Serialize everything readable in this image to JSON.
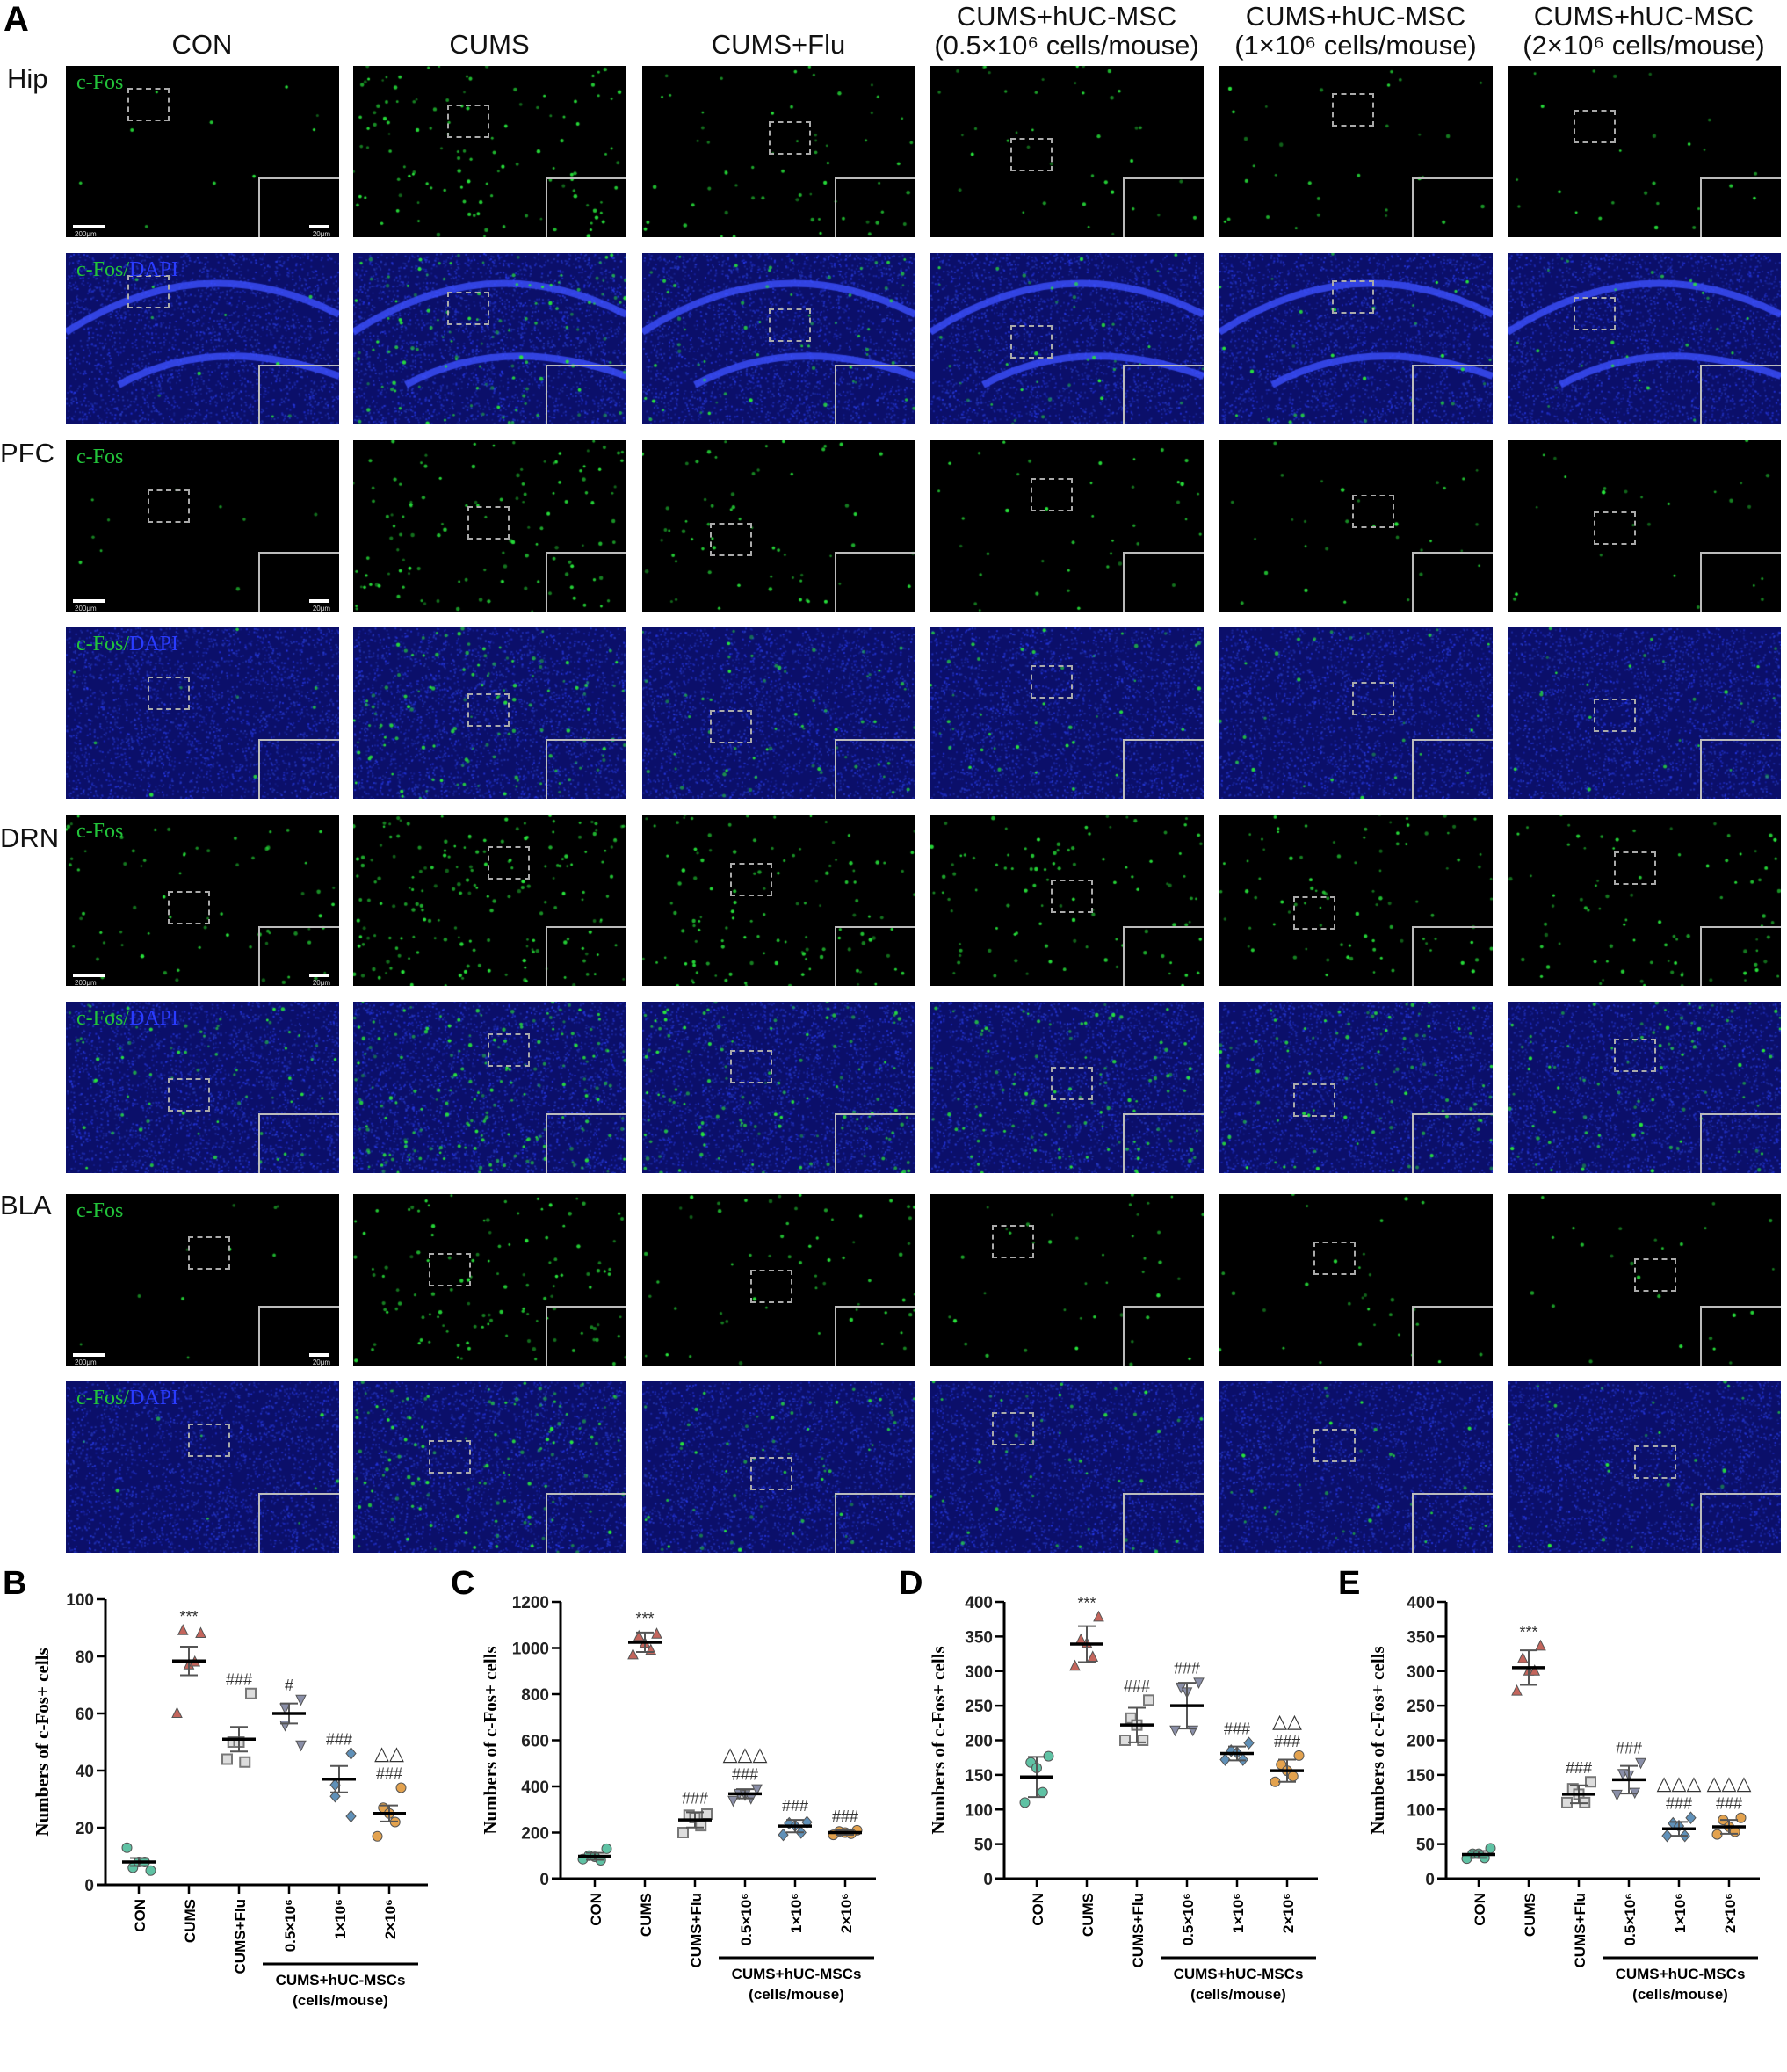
{
  "figure_a": {
    "label": "A",
    "columns": [
      {
        "line1": "CON",
        "line2": ""
      },
      {
        "line1": "CUMS",
        "line2": ""
      },
      {
        "line1": "CUMS+Flu",
        "line2": ""
      },
      {
        "line1": "CUMS+hUC-MSC",
        "line2": "(0.5×10⁶ cells/mouse)"
      },
      {
        "line1": "CUMS+hUC-MSC",
        "line2": "(1×10⁶ cells/mouse)"
      },
      {
        "line1": "CUMS+hUC-MSC",
        "line2": "(2×10⁶ cells/mouse)"
      }
    ],
    "regions": [
      "Hip",
      "PFC",
      "DRN",
      "BLA"
    ],
    "stain_labels": {
      "green": "c-Fos",
      "merge_prefix": "c-Fos/",
      "merge_dapi": "DAPI"
    },
    "scale_bars": {
      "main": "200μm",
      "inset": "20μm"
    },
    "colors": {
      "cfos": "#22c33a",
      "dapi": "#1a24d8",
      "background": "#000000"
    }
  },
  "chart_data": [
    {
      "panel": "B",
      "type": "scatter",
      "ylabel": "Numbers of c-Fos+ cells",
      "ylim": [
        0,
        100
      ],
      "yticks": [
        0,
        20,
        40,
        60,
        80,
        100
      ],
      "categories": [
        "CON",
        "CUMS",
        "CUMS+Flu",
        "0.5×10⁶",
        "1×10⁶",
        "2×10⁶"
      ],
      "group_label": [
        "CUMS+hUC-MSCs",
        "(cells/mouse)"
      ],
      "series": [
        {
          "points": [
            5,
            6,
            8,
            8,
            13
          ],
          "mean": 8,
          "error": 1.4,
          "annotations": []
        },
        {
          "points": [
            88,
            89,
            77,
            78,
            60
          ],
          "mean": 78.4,
          "error": 5,
          "annotations": [
            "***"
          ]
        },
        {
          "points": [
            67,
            50,
            50,
            43,
            44
          ],
          "mean": 51,
          "error": 4.3,
          "annotations": [
            "###"
          ]
        },
        {
          "points": [
            65,
            62,
            56,
            49
          ],
          "mean": 60,
          "error": 3.5,
          "annotations": [
            "#"
          ]
        },
        {
          "points": [
            46,
            35,
            31,
            24
          ],
          "mean": 37,
          "error": 4.6,
          "annotations": [
            "###"
          ]
        },
        {
          "points": [
            34,
            27,
            25,
            22,
            17
          ],
          "mean": 25,
          "error": 2.8,
          "annotations": [
            "△△",
            "###"
          ]
        }
      ]
    },
    {
      "panel": "C",
      "type": "scatter",
      "ylabel": "Numbers of c-Fos+ cells",
      "ylim": [
        0,
        1200
      ],
      "yticks": [
        0,
        200,
        400,
        600,
        800,
        1000,
        1200
      ],
      "categories": [
        "CON",
        "CUMS",
        "CUMS+Flu",
        "0.5×10⁶",
        "1×10⁶",
        "2×10⁶"
      ],
      "group_label": [
        "CUMS+hUC-MSCs",
        "(cells/mouse)"
      ],
      "series": [
        {
          "points": [
            130,
            100,
            95,
            80,
            85
          ],
          "mean": 97,
          "error": 15,
          "annotations": []
        },
        {
          "points": [
            1060,
            1050,
            1020,
            990,
            970
          ],
          "mean": 1025,
          "error": 42,
          "annotations": [
            "***"
          ]
        },
        {
          "points": [
            280,
            275,
            265,
            230,
            200
          ],
          "mean": 255,
          "error": 33,
          "annotations": [
            "###"
          ]
        },
        {
          "points": [
            390,
            370,
            365,
            350,
            340
          ],
          "mean": 368,
          "error": 20,
          "annotations": [
            "△△△",
            "###"
          ]
        },
        {
          "points": [
            245,
            240,
            230,
            200,
            190
          ],
          "mean": 228,
          "error": 27,
          "annotations": [
            "###"
          ]
        },
        {
          "points": [
            210,
            205,
            200,
            195,
            190
          ],
          "mean": 200,
          "error": 10,
          "annotations": [
            "###"
          ]
        }
      ]
    },
    {
      "panel": "D",
      "type": "scatter",
      "ylabel": "Numbers of c-Fos+ cells",
      "ylim": [
        0,
        400
      ],
      "yticks": [
        0,
        50,
        100,
        150,
        200,
        250,
        300,
        350,
        400
      ],
      "categories": [
        "CON",
        "CUMS",
        "CUMS+Flu",
        "0.5×10⁶",
        "1×10⁶",
        "2×10⁶"
      ],
      "group_label": [
        "CUMS+hUC-MSCs",
        "(cells/mouse)"
      ],
      "series": [
        {
          "points": [
            177,
            168,
            160,
            125,
            110
          ],
          "mean": 147,
          "error": 29,
          "annotations": []
        },
        {
          "points": [
            378,
            345,
            340,
            320,
            307
          ],
          "mean": 339,
          "error": 26,
          "annotations": [
            "***"
          ]
        },
        {
          "points": [
            258,
            232,
            222,
            200,
            200
          ],
          "mean": 222,
          "error": 25,
          "annotations": [
            "###"
          ]
        },
        {
          "points": [
            284,
            277,
            270,
            215,
            215
          ],
          "mean": 250,
          "error": 33,
          "annotations": [
            "###"
          ]
        },
        {
          "points": [
            196,
            185,
            182,
            172,
            172
          ],
          "mean": 181,
          "error": 10,
          "annotations": [
            "###"
          ]
        },
        {
          "points": [
            178,
            165,
            156,
            148,
            140
          ],
          "mean": 156,
          "error": 16,
          "annotations": [
            "△△",
            "###"
          ]
        }
      ]
    },
    {
      "panel": "E",
      "type": "scatter",
      "ylabel": "Numbers of c-Fos+ cells",
      "ylim": [
        0,
        400
      ],
      "yticks": [
        0,
        50,
        100,
        150,
        200,
        250,
        300,
        350,
        400
      ],
      "categories": [
        "CON",
        "CUMS",
        "CUMS+Flu",
        "0.5×10⁶",
        "1×10⁶",
        "2×10⁶"
      ],
      "group_label": [
        "CUMS+hUC-MSCs",
        "(cells/mouse)"
      ],
      "series": [
        {
          "points": [
            44,
            36,
            36,
            30,
            29
          ],
          "mean": 35,
          "error": 5,
          "annotations": []
        },
        {
          "points": [
            336,
            318,
            300,
            300,
            271
          ],
          "mean": 305,
          "error": 25,
          "annotations": [
            "***"
          ]
        },
        {
          "points": [
            140,
            130,
            122,
            110,
            110
          ],
          "mean": 122,
          "error": 13,
          "annotations": [
            "###"
          ]
        },
        {
          "points": [
            168,
            152,
            150,
            125,
            122
          ],
          "mean": 143,
          "error": 20,
          "annotations": [
            "###"
          ]
        },
        {
          "points": [
            88,
            80,
            76,
            62,
            62
          ],
          "mean": 72,
          "error": 10,
          "annotations": [
            "△△△",
            "###"
          ]
        },
        {
          "points": [
            88,
            85,
            75,
            68,
            64
          ],
          "mean": 75,
          "error": 10,
          "annotations": [
            "△△△",
            "###"
          ]
        }
      ]
    }
  ],
  "group_styles": [
    {
      "marker": "circle",
      "color": "#5fc2a4"
    },
    {
      "marker": "triangle-up",
      "color": "#c4655c"
    },
    {
      "marker": "square",
      "color": "#a6a6a6"
    },
    {
      "marker": "triangle-down",
      "color": "#8a8fa8"
    },
    {
      "marker": "diamond",
      "color": "#5f90b8"
    },
    {
      "marker": "circle",
      "color": "#e3a24e"
    }
  ]
}
